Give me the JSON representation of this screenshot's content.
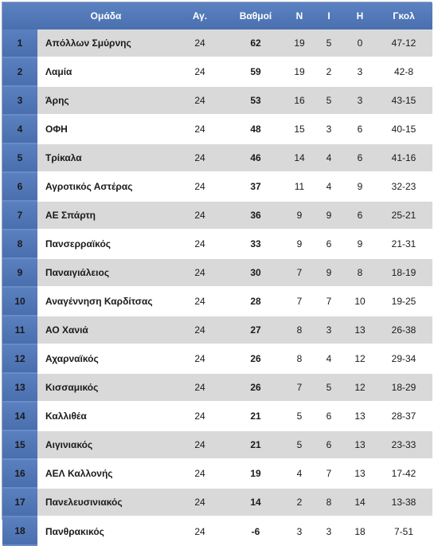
{
  "headers": {
    "position": "",
    "team": "Ομάδα",
    "played": "Αγ.",
    "points": "Βαθμοί",
    "wins": "Ν",
    "draws": "Ι",
    "losses": "Η",
    "goals": "Γκολ"
  },
  "rows": [
    {
      "pos": "1",
      "team": "Απόλλων Σμύρνης",
      "played": "24",
      "points": "62",
      "w": "19",
      "d": "5",
      "l": "0",
      "goals": "47-12"
    },
    {
      "pos": "2",
      "team": "Λαμία",
      "played": "24",
      "points": "59",
      "w": "19",
      "d": "2",
      "l": "3",
      "goals": "42-8"
    },
    {
      "pos": "3",
      "team": "Άρης",
      "played": "24",
      "points": "53",
      "w": "16",
      "d": "5",
      "l": "3",
      "goals": "43-15"
    },
    {
      "pos": "4",
      "team": "ΟΦΗ",
      "played": "24",
      "points": "48",
      "w": "15",
      "d": "3",
      "l": "6",
      "goals": "40-15"
    },
    {
      "pos": "5",
      "team": "Τρίκαλα",
      "played": "24",
      "points": "46",
      "w": "14",
      "d": "4",
      "l": "6",
      "goals": "41-16"
    },
    {
      "pos": "6",
      "team": "Αγροτικός Αστέρας",
      "played": "24",
      "points": "37",
      "w": "11",
      "d": "4",
      "l": "9",
      "goals": "32-23"
    },
    {
      "pos": "7",
      "team": "ΑΕ Σπάρτη",
      "played": "24",
      "points": "36",
      "w": "9",
      "d": "9",
      "l": "6",
      "goals": "25-21"
    },
    {
      "pos": "8",
      "team": "Πανσερραϊκός",
      "played": "24",
      "points": "33",
      "w": "9",
      "d": "6",
      "l": "9",
      "goals": "21-31"
    },
    {
      "pos": "9",
      "team": "Παναιγιάλειος",
      "played": "24",
      "points": "30",
      "w": "7",
      "d": "9",
      "l": "8",
      "goals": "18-19"
    },
    {
      "pos": "10",
      "team": "Αναγέννηση Καρδίτσας",
      "played": "24",
      "points": "28",
      "w": "7",
      "d": "7",
      "l": "10",
      "goals": "19-25"
    },
    {
      "pos": "11",
      "team": "ΑΟ Χανιά",
      "played": "24",
      "points": "27",
      "w": "8",
      "d": "3",
      "l": "13",
      "goals": "26-38"
    },
    {
      "pos": "12",
      "team": "Αχαρναϊκός",
      "played": "24",
      "points": "26",
      "w": "8",
      "d": "4",
      "l": "12",
      "goals": "29-34"
    },
    {
      "pos": "13",
      "team": "Κισσαμικός",
      "played": "24",
      "points": "26",
      "w": "7",
      "d": "5",
      "l": "12",
      "goals": "18-29"
    },
    {
      "pos": "14",
      "team": "Καλλιθέα",
      "played": "24",
      "points": "21",
      "w": "5",
      "d": "6",
      "l": "13",
      "goals": "28-37"
    },
    {
      "pos": "15",
      "team": "Αιγινιακός",
      "played": "24",
      "points": "21",
      "w": "5",
      "d": "6",
      "l": "13",
      "goals": "23-33"
    },
    {
      "pos": "16",
      "team": "ΑΕΛ Καλλονής",
      "played": "24",
      "points": "19",
      "w": "4",
      "d": "7",
      "l": "13",
      "goals": "17-42"
    },
    {
      "pos": "17",
      "team": "Πανελευσινιακός",
      "played": "24",
      "points": "14",
      "w": "2",
      "d": "8",
      "l": "14",
      "goals": "13-38"
    },
    {
      "pos": "18",
      "team": "Πανθρακικός",
      "played": "24",
      "points": "-6",
      "w": "3",
      "d": "3",
      "l": "18",
      "goals": "7-51"
    }
  ]
}
